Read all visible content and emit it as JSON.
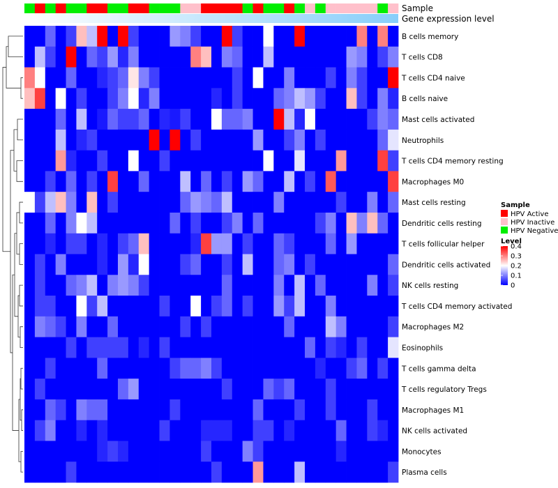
{
  "chart_data": {
    "type": "heatmap",
    "title": "",
    "annotation_labels": [
      "Sample",
      "Gene expression level"
    ],
    "sample_groups": [
      "HPV Negative",
      "HPV Active",
      "HPV Negative",
      "HPV Active",
      "HPV Negative",
      "HPV Negative",
      "HPV Active",
      "HPV Active",
      "HPV Negative",
      "HPV Negative",
      "HPV Active",
      "HPV Active",
      "HPV Negative",
      "HPV Negative",
      "HPV Negative",
      "HPV Inactive",
      "HPV Inactive",
      "HPV Active",
      "HPV Active",
      "HPV Active",
      "HPV Active",
      "HPV Negative",
      "HPV Active",
      "HPV Negative",
      "HPV Negative",
      "HPV Active",
      "HPV Negative",
      "HPV Inactive",
      "HPV Negative",
      "HPV Inactive",
      "HPV Inactive",
      "HPV Inactive",
      "HPV Inactive",
      "HPV Inactive",
      "HPV Negative",
      "HPV Inactive"
    ],
    "expression_gradient": [
      "#ffffff",
      "#87cefa"
    ],
    "rows": [
      "B cells memory",
      "T cells CD8",
      "T cells CD4 naive",
      "B cells naive",
      "Mast cells activated",
      "Neutrophils",
      "T cells CD4 memory resting",
      "Macrophages M0",
      "Mast cells resting",
      "Dendritic cells resting",
      "T cells follicular helper",
      "Dendritic cells activated",
      "NK cells resting",
      "T cells CD4 memory activated",
      "Macrophages M2",
      "Eosinophils",
      "T cells gamma delta",
      "T cells regulatory  Tregs",
      "Macrophages M1",
      "NK cells activated",
      "Monocytes",
      "Plasma cells"
    ],
    "values": [
      [
        0.0,
        0.0,
        0.08,
        0.0,
        0.05,
        0.25,
        0.15,
        0.4,
        0.0,
        0.4,
        0.05,
        0.0,
        0.0,
        0.0,
        0.12,
        0.1,
        0.05,
        0.0,
        0.0,
        0.4,
        0.05,
        0.0,
        0.0,
        0.2,
        0.0,
        0.0,
        0.4,
        0.0,
        0.0,
        0.0,
        0.0,
        0.0,
        0.3,
        0.0,
        0.3,
        0.0
      ],
      [
        0.0,
        0.15,
        0.05,
        0.0,
        0.4,
        0.0,
        0.08,
        0.05,
        0.12,
        0.03,
        0.1,
        0.0,
        0.0,
        0.0,
        0.0,
        0.0,
        0.3,
        0.25,
        0.0,
        0.1,
        0.08,
        0.0,
        0.0,
        0.15,
        0.0,
        0.0,
        0.0,
        0.0,
        0.0,
        0.0,
        0.0,
        0.12,
        0.1,
        0.0,
        0.05,
        0.1
      ],
      [
        0.3,
        0.2,
        0.0,
        0.0,
        0.08,
        0.0,
        0.0,
        0.03,
        0.05,
        0.08,
        0.22,
        0.1,
        0.05,
        0.0,
        0.0,
        0.0,
        0.0,
        0.0,
        0.0,
        0.0,
        0.05,
        0.0,
        0.2,
        0.0,
        0.0,
        0.1,
        0.0,
        0.0,
        0.0,
        0.05,
        0.0,
        0.1,
        0.05,
        0.0,
        0.0,
        0.4
      ],
      [
        0.25,
        0.35,
        0.0,
        0.2,
        0.0,
        0.05,
        0.0,
        0.0,
        0.05,
        0.1,
        0.2,
        0.03,
        0.1,
        0.0,
        0.0,
        0.0,
        0.0,
        0.0,
        0.03,
        0.0,
        0.05,
        0.0,
        0.0,
        0.0,
        0.08,
        0.1,
        0.15,
        0.12,
        0.05,
        0.0,
        0.0,
        0.25,
        0.05,
        0.0,
        0.1,
        0.03
      ],
      [
        0.0,
        0.0,
        0.0,
        0.08,
        0.0,
        0.15,
        0.0,
        0.02,
        0.08,
        0.05,
        0.05,
        0.08,
        0.0,
        0.03,
        0.02,
        0.05,
        0.0,
        0.0,
        0.2,
        0.08,
        0.08,
        0.1,
        0.0,
        0.0,
        0.4,
        0.15,
        0.03,
        0.2,
        0.0,
        0.0,
        0.0,
        0.0,
        0.0,
        0.05,
        0.1,
        0.08
      ],
      [
        0.0,
        0.0,
        0.0,
        0.15,
        0.0,
        0.03,
        0.05,
        0.0,
        0.0,
        0.0,
        0.0,
        0.0,
        0.4,
        0.0,
        0.4,
        0.0,
        0.05,
        0.0,
        0.0,
        0.0,
        0.0,
        0.0,
        0.12,
        0.0,
        0.0,
        0.05,
        0.1,
        0.0,
        0.05,
        0.0,
        0.0,
        0.0,
        0.0,
        0.0,
        0.08,
        0.18
      ],
      [
        0.0,
        0.0,
        0.0,
        0.28,
        0.03,
        0.0,
        0.0,
        0.05,
        0.0,
        0.0,
        0.2,
        0.0,
        0.0,
        0.05,
        0.0,
        0.0,
        0.0,
        0.0,
        0.0,
        0.0,
        0.0,
        0.0,
        0.0,
        0.2,
        0.0,
        0.0,
        0.18,
        0.0,
        0.0,
        0.0,
        0.28,
        0.0,
        0.0,
        0.0,
        0.35,
        0.05
      ],
      [
        0.0,
        0.0,
        0.05,
        0.0,
        0.08,
        0.0,
        0.05,
        0.0,
        0.35,
        0.0,
        0.0,
        0.08,
        0.0,
        0.0,
        0.0,
        0.15,
        0.0,
        0.08,
        0.0,
        0.05,
        0.0,
        0.12,
        0.08,
        0.0,
        0.0,
        0.15,
        0.0,
        0.05,
        0.0,
        0.33,
        0.0,
        0.0,
        0.0,
        0.0,
        0.0,
        0.35
      ],
      [
        0.2,
        0.05,
        0.15,
        0.25,
        0.1,
        0.0,
        0.25,
        0.0,
        0.05,
        0.0,
        0.0,
        0.0,
        0.0,
        0.0,
        0.0,
        0.08,
        0.12,
        0.1,
        0.08,
        0.15,
        0.0,
        0.0,
        0.0,
        0.0,
        0.1,
        0.0,
        0.0,
        0.0,
        0.0,
        0.0,
        0.05,
        0.0,
        0.0,
        0.1,
        0.0,
        0.08
      ],
      [
        0.0,
        0.0,
        0.08,
        0.0,
        0.1,
        0.2,
        0.15,
        0.0,
        0.0,
        0.0,
        0.0,
        0.0,
        0.0,
        0.0,
        0.08,
        0.0,
        0.05,
        0.0,
        0.0,
        0.05,
        0.1,
        0.0,
        0.08,
        0.0,
        0.0,
        0.0,
        0.0,
        0.0,
        0.05,
        0.1,
        0.0,
        0.25,
        0.1,
        0.25,
        0.08,
        0.0
      ],
      [
        0.0,
        0.0,
        0.03,
        0.0,
        0.05,
        0.05,
        0.0,
        0.03,
        0.0,
        0.05,
        0.08,
        0.25,
        0.0,
        0.0,
        0.0,
        0.0,
        0.03,
        0.35,
        0.12,
        0.12,
        0.0,
        0.05,
        0.0,
        0.0,
        0.08,
        0.05,
        0.0,
        0.0,
        0.0,
        0.08,
        0.0,
        0.12,
        0.0,
        0.0,
        0.0,
        0.0
      ],
      [
        0.0,
        0.05,
        0.0,
        0.1,
        0.0,
        0.0,
        0.0,
        0.03,
        0.0,
        0.12,
        0.03,
        0.2,
        0.0,
        0.0,
        0.0,
        0.05,
        0.08,
        0.0,
        0.0,
        0.05,
        0.0,
        0.15,
        0.0,
        0.0,
        0.08,
        0.1,
        0.0,
        0.05,
        0.0,
        0.0,
        0.0,
        0.0,
        0.0,
        0.0,
        0.0,
        0.08
      ],
      [
        0.0,
        0.05,
        0.0,
        0.0,
        0.08,
        0.1,
        0.15,
        0.0,
        0.1,
        0.12,
        0.1,
        0.05,
        0.0,
        0.0,
        0.0,
        0.0,
        0.0,
        0.0,
        0.0,
        0.08,
        0.0,
        0.0,
        0.0,
        0.0,
        0.1,
        0.0,
        0.15,
        0.0,
        0.08,
        0.0,
        0.0,
        0.0,
        0.0,
        0.1,
        0.0,
        0.05
      ],
      [
        0.0,
        0.05,
        0.05,
        0.0,
        0.0,
        0.2,
        0.05,
        0.15,
        0.0,
        0.0,
        0.0,
        0.0,
        0.0,
        0.05,
        0.0,
        0.0,
        0.2,
        0.0,
        0.05,
        0.08,
        0.0,
        0.05,
        0.0,
        0.0,
        0.12,
        0.05,
        0.15,
        0.0,
        0.0,
        0.1,
        0.0,
        0.0,
        0.0,
        0.0,
        0.0,
        0.0
      ],
      [
        0.0,
        0.1,
        0.08,
        0.05,
        0.0,
        0.1,
        0.0,
        0.0,
        0.08,
        0.0,
        0.0,
        0.0,
        0.0,
        0.0,
        0.0,
        0.05,
        0.0,
        0.05,
        0.0,
        0.0,
        0.0,
        0.0,
        0.0,
        0.0,
        0.0,
        0.08,
        0.0,
        0.0,
        0.0,
        0.15,
        0.1,
        0.0,
        0.0,
        0.0,
        0.0,
        0.05
      ],
      [
        0.0,
        0.0,
        0.0,
        0.0,
        0.05,
        0.0,
        0.05,
        0.05,
        0.05,
        0.05,
        0.0,
        0.03,
        0.0,
        0.05,
        0.0,
        0.0,
        0.0,
        0.0,
        0.0,
        0.0,
        0.0,
        0.0,
        0.0,
        0.0,
        0.0,
        0.0,
        0.0,
        0.08,
        0.0,
        0.05,
        0.03,
        0.0,
        0.05,
        0.0,
        0.0,
        0.18
      ],
      [
        0.0,
        0.0,
        0.05,
        0.0,
        0.0,
        0.0,
        0.0,
        0.08,
        0.0,
        0.0,
        0.0,
        0.0,
        0.0,
        0.0,
        0.05,
        0.08,
        0.08,
        0.1,
        0.05,
        0.0,
        0.0,
        0.0,
        0.0,
        0.0,
        0.0,
        0.0,
        0.0,
        0.0,
        0.03,
        0.0,
        0.0,
        0.05,
        0.08,
        0.0,
        0.05,
        0.0
      ],
      [
        0.0,
        0.05,
        0.0,
        0.0,
        0.0,
        0.0,
        0.0,
        0.0,
        0.0,
        0.08,
        0.12,
        0.0,
        0.0,
        0.0,
        0.0,
        0.0,
        0.0,
        0.0,
        0.0,
        0.05,
        0.0,
        0.0,
        0.0,
        0.08,
        0.05,
        0.08,
        0.0,
        0.0,
        0.0,
        0.05,
        0.0,
        0.0,
        0.0,
        0.0,
        0.0,
        0.0
      ],
      [
        0.0,
        0.0,
        0.08,
        0.05,
        0.0,
        0.1,
        0.08,
        0.08,
        0.0,
        0.0,
        0.0,
        0.0,
        0.0,
        0.0,
        0.05,
        0.0,
        0.0,
        0.0,
        0.0,
        0.0,
        0.0,
        0.0,
        0.08,
        0.0,
        0.0,
        0.0,
        0.05,
        0.0,
        0.0,
        0.05,
        0.0,
        0.0,
        0.0,
        0.05,
        0.0,
        0.0
      ],
      [
        0.0,
        0.05,
        0.1,
        0.0,
        0.0,
        0.03,
        0.0,
        0.03,
        0.0,
        0.0,
        0.0,
        0.0,
        0.0,
        0.05,
        0.0,
        0.0,
        0.0,
        0.03,
        0.03,
        0.03,
        0.0,
        0.0,
        0.05,
        0.05,
        0.0,
        0.03,
        0.0,
        0.0,
        0.0,
        0.0,
        0.08,
        0.0,
        0.0,
        0.05,
        0.03,
        0.0
      ],
      [
        0.0,
        0.0,
        0.0,
        0.0,
        0.0,
        0.0,
        0.0,
        0.03,
        0.05,
        0.03,
        0.0,
        0.0,
        0.0,
        0.0,
        0.0,
        0.0,
        0.0,
        0.05,
        0.0,
        0.0,
        0.0,
        0.1,
        0.05,
        0.0,
        0.0,
        0.0,
        0.0,
        0.0,
        0.0,
        0.0,
        0.03,
        0.0,
        0.0,
        0.0,
        0.0,
        0.0
      ],
      [
        0.0,
        0.0,
        0.0,
        0.0,
        0.05,
        0.0,
        0.0,
        0.0,
        0.0,
        0.0,
        0.0,
        0.0,
        0.0,
        0.0,
        0.0,
        0.0,
        0.0,
        0.0,
        0.05,
        0.0,
        0.0,
        0.0,
        0.28,
        0.0,
        0.0,
        0.0,
        0.15,
        0.0,
        0.0,
        0.0,
        0.0,
        0.0,
        0.0,
        0.0,
        0.0,
        0.05
      ]
    ],
    "legend": {
      "sample": {
        "title": "Sample",
        "items": [
          {
            "label": "HPV Active",
            "color": "#ff0000"
          },
          {
            "label": "HPV Inactive",
            "color": "#ffc0cb"
          },
          {
            "label": "HPV Negative",
            "color": "#00ee00"
          }
        ]
      },
      "level": {
        "title": "Level",
        "ticks": [
          "0.4",
          "0.3",
          "0.2",
          "0.1",
          "0"
        ],
        "tick_values": [
          0.4,
          0.3,
          0.2,
          0.1,
          0
        ],
        "range": [
          0,
          0.4
        ],
        "colors": [
          "#0000ff",
          "#ffffff",
          "#ff0000"
        ]
      }
    }
  }
}
